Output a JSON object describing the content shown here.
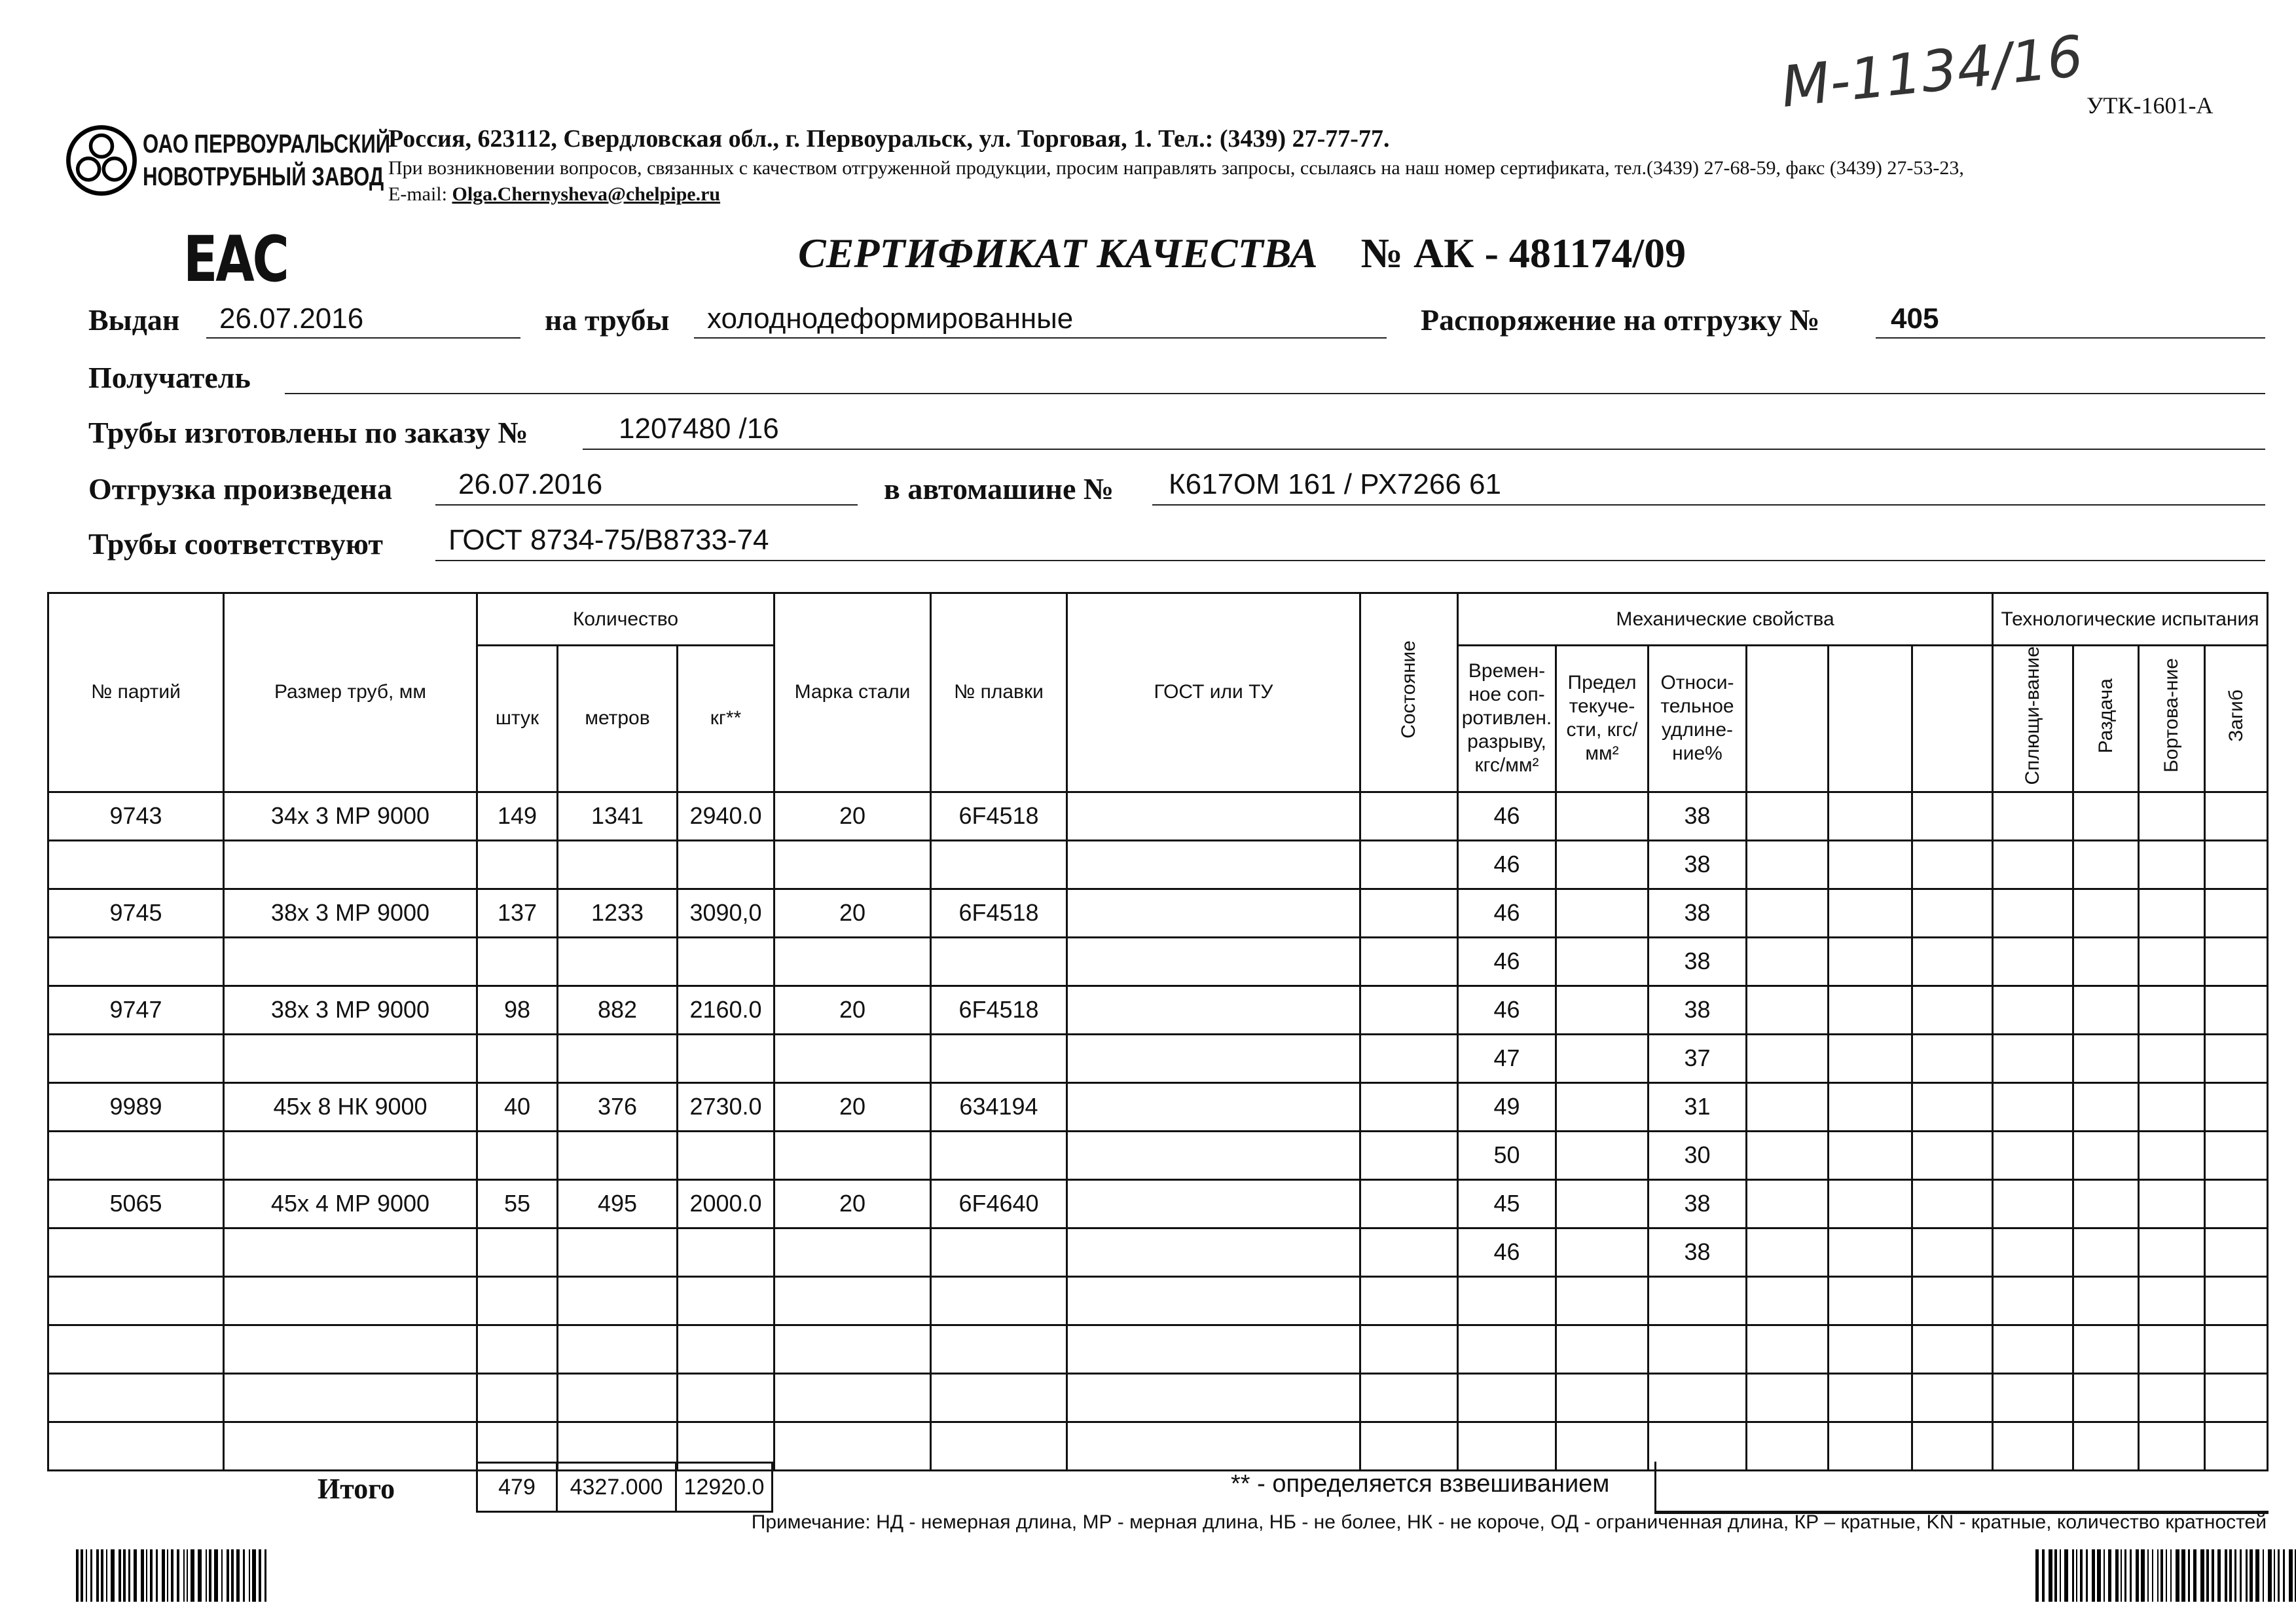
{
  "header": {
    "company_line1": "ОАО ПЕРВОУРАЛЬСКИЙ",
    "company_line2": "НОВОТРУБНЫЙ ЗАВОД",
    "address": "Россия, 623112, Свердловская обл., г. Первоуральск, ул. Торговая, 1. Тел.: (3439) 27-77-77.",
    "contact_note": "При возникновении вопросов, связанных с качеством отгруженной продукции, просим направлять запросы, ссылаясь на наш номер сертификата, тел.(3439) 27-68-59, факс (3439) 27-53-23,",
    "email_label": "E-mail:",
    "email": "Olga.Chernysheva@chelpipe.ru",
    "handwritten_number": "М-1134/16",
    "form_code": "УТК-1601-А",
    "eac_mark": "ЕАС"
  },
  "title": {
    "text": "СЕРТИФИКАТ КАЧЕСТВА",
    "number": "№  АК -  481174/09"
  },
  "fields": {
    "issued_label": "Выдан",
    "issued_value": "26.07.2016",
    "pipes_label": "на трубы",
    "pipes_value": "холоднодеформированные",
    "order_label": "Распоряжение на отгрузку №",
    "order_value": "405",
    "recipient_label": "Получатель",
    "recipient_value": "",
    "made_by_order_label": "Трубы изготовлены по заказу №",
    "made_by_order_value": "1207480   /16",
    "shipped_label": "Отгрузка произведена",
    "shipped_value": "26.07.2016",
    "truck_label": "в автомашине №",
    "truck_value": "К617ОМ 161 / РХ7266 61",
    "conform_label": "Трубы соответствуют",
    "conform_value": "ГОСТ 8734-75/В8733-74"
  },
  "table": {
    "headers": {
      "batch": "№ партий",
      "size": "Размер труб, мм",
      "quantity": "Количество",
      "pcs": "штук",
      "meters": "метров",
      "kg": "кг**",
      "steel": "Марка стали",
      "heat": "№ плавки",
      "gost": "ГОСТ или ТУ",
      "condition": "Состояние",
      "mech": "Механические свойства",
      "tensile": "Времен-ное соп-ротивлен. разрыву, кгс/мм²",
      "yield": "Предел текуче-сти, кгс/мм²",
      "elongation": "Относи-тельное удлине-ние%",
      "tech": "Технологические испытания",
      "flattening": "Сплющи-вание",
      "expansion": "Раздача",
      "flanging": "Бортова-ние",
      "bend": "Загиб"
    },
    "rows": [
      [
        "9743",
        "34х 3 МР 9000",
        "149",
        "1341",
        "2940.0",
        "20",
        "6F4518",
        "",
        "",
        "46",
        "",
        "38",
        "",
        "",
        "",
        "",
        "",
        "",
        ""
      ],
      [
        "",
        "",
        "",
        "",
        "",
        "",
        "",
        "",
        "",
        "46",
        "",
        "38",
        "",
        "",
        "",
        "",
        "",
        "",
        ""
      ],
      [
        "9745",
        "38х 3 МР 9000",
        "137",
        "1233",
        "3090,0",
        "20",
        "6F4518",
        "",
        "",
        "46",
        "",
        "38",
        "",
        "",
        "",
        "",
        "",
        "",
        ""
      ],
      [
        "",
        "",
        "",
        "",
        "",
        "",
        "",
        "",
        "",
        "46",
        "",
        "38",
        "",
        "",
        "",
        "",
        "",
        "",
        ""
      ],
      [
        "9747",
        "38х 3 МР 9000",
        "98",
        "882",
        "2160.0",
        "20",
        "6F4518",
        "",
        "",
        "46",
        "",
        "38",
        "",
        "",
        "",
        "",
        "",
        "",
        ""
      ],
      [
        "",
        "",
        "",
        "",
        "",
        "",
        "",
        "",
        "",
        "47",
        "",
        "37",
        "",
        "",
        "",
        "",
        "",
        "",
        ""
      ],
      [
        "9989",
        "45х 8 НК 9000",
        "40",
        "376",
        "2730.0",
        "20",
        "634194",
        "",
        "",
        "49",
        "",
        "31",
        "",
        "",
        "",
        "",
        "",
        "",
        ""
      ],
      [
        "",
        "",
        "",
        "",
        "",
        "",
        "",
        "",
        "",
        "50",
        "",
        "30",
        "",
        "",
        "",
        "",
        "",
        "",
        ""
      ],
      [
        "5065",
        "45х 4 МР 9000",
        "55",
        "495",
        "2000.0",
        "20",
        "6F4640",
        "",
        "",
        "45",
        "",
        "38",
        "",
        "",
        "",
        "",
        "",
        "",
        ""
      ],
      [
        "",
        "",
        "",
        "",
        "",
        "",
        "",
        "",
        "",
        "46",
        "",
        "38",
        "",
        "",
        "",
        "",
        "",
        "",
        ""
      ],
      [
        "",
        "",
        "",
        "",
        "",
        "",
        "",
        "",
        "",
        "",
        "",
        "",
        "",
        "",
        "",
        "",
        "",
        "",
        ""
      ],
      [
        "",
        "",
        "",
        "",
        "",
        "",
        "",
        "",
        "",
        "",
        "",
        "",
        "",
        "",
        "",
        "",
        "",
        "",
        ""
      ],
      [
        "",
        "",
        "",
        "",
        "",
        "",
        "",
        "",
        "",
        "",
        "",
        "",
        "",
        "",
        "",
        "",
        "",
        "",
        ""
      ],
      [
        "",
        "",
        "",
        "",
        "",
        "",
        "",
        "",
        "",
        "",
        "",
        "",
        "",
        "",
        "",
        "",
        "",
        "",
        ""
      ]
    ],
    "totals": {
      "label": "Итого",
      "pcs": "479",
      "meters": "4327.000",
      "kg": "12920.0"
    },
    "weighing_note": "** - определяется взвешиванием"
  },
  "footnote": "Примечание: НД - немерная длина, МР - мерная длина, НБ - не более, НК - не короче, ОД - ограниченная длина, КР – кратные, KN - кратные, количество кратностей"
}
